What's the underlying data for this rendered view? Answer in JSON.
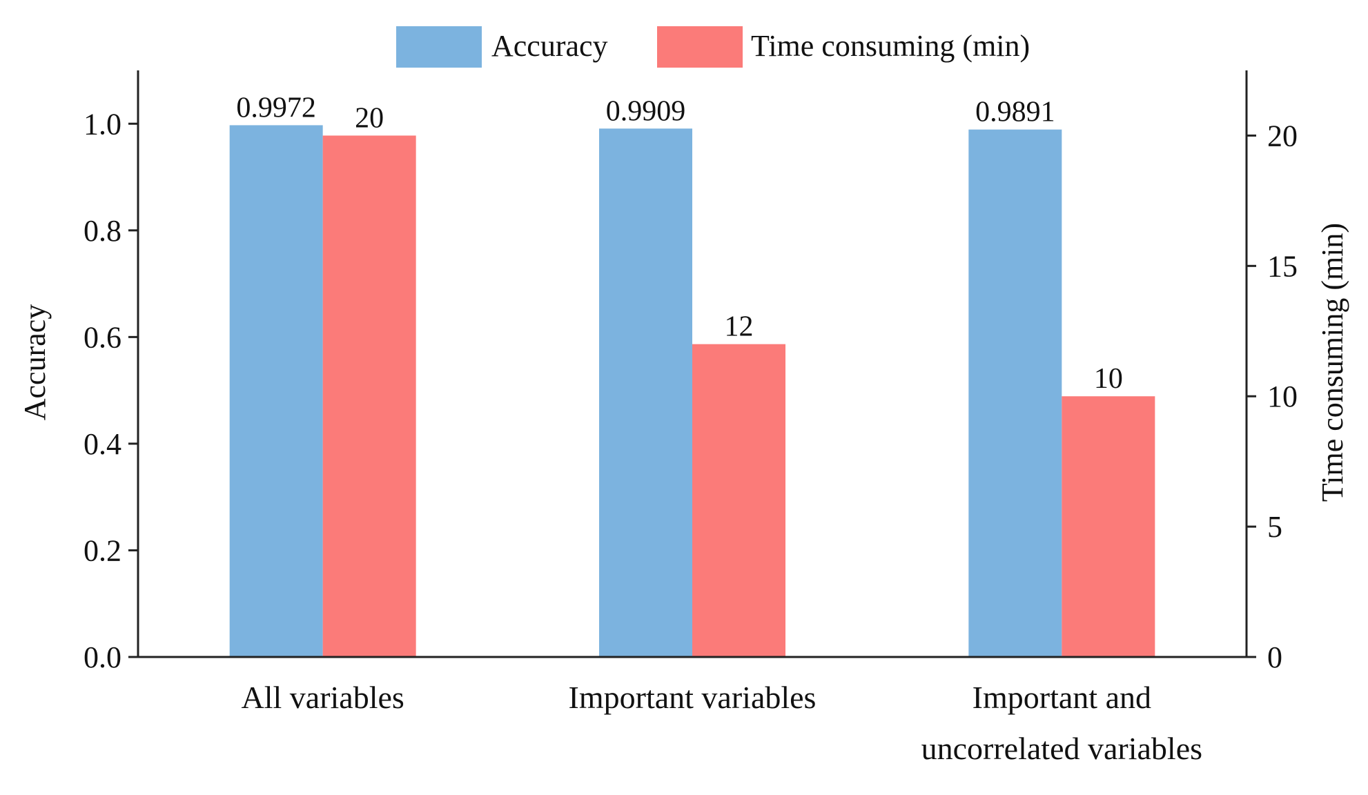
{
  "chart_data": {
    "type": "bar",
    "categories": [
      [
        "All variables"
      ],
      [
        "Important variables"
      ],
      [
        "Important and",
        "uncorrelated variables"
      ]
    ],
    "series": [
      {
        "name": "Accuracy",
        "axis": "left",
        "color": "#7cb3df",
        "values": [
          0.9972,
          0.9909,
          0.9891
        ],
        "labels": [
          "0.9972",
          "0.9909",
          "0.9891"
        ]
      },
      {
        "name": "Time consuming (min)",
        "axis": "right",
        "color": "#fb7b79",
        "values": [
          20,
          12,
          10
        ],
        "labels": [
          "20",
          "12",
          "10"
        ]
      }
    ],
    "y_left": {
      "label": "Accuracy",
      "range": [
        0,
        1.1
      ],
      "ticks": [
        0.0,
        0.2,
        0.4,
        0.6,
        0.8,
        1.0
      ],
      "tick_labels": [
        "0.0",
        "0.2",
        "0.4",
        "0.6",
        "0.8",
        "1.0"
      ]
    },
    "y_right": {
      "label": "Time consuming (min)",
      "range": [
        0,
        22.5
      ],
      "ticks": [
        0,
        5,
        10,
        15,
        20
      ],
      "tick_labels": [
        "0",
        "5",
        "10",
        "15",
        "20"
      ]
    },
    "legend": {
      "placement": "top-center",
      "entries": [
        "Accuracy",
        "Time consuming (min)"
      ]
    },
    "grid": false
  }
}
